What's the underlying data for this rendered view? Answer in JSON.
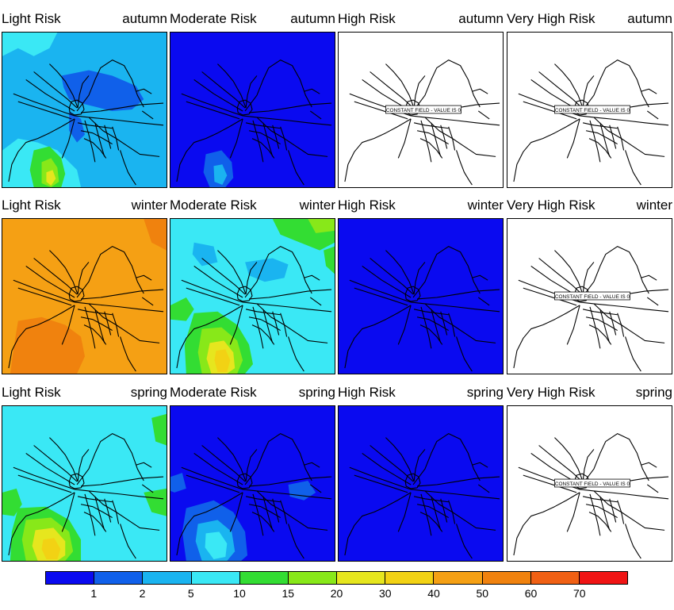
{
  "colorbar": {
    "colors": [
      "#0a0af0",
      "#1060ea",
      "#1ab4f0",
      "#3ae8f5",
      "#33dd33",
      "#88e819",
      "#e6e61e",
      "#f2d214",
      "#f5a014",
      "#f0820e",
      "#f06014",
      "#f01414"
    ],
    "labels": [
      "1",
      "2",
      "5",
      "10",
      "15",
      "20",
      "30",
      "40",
      "50",
      "60",
      "70"
    ]
  },
  "constant_label": "CONSTANT FIELD - VALUE IS 0",
  "rows": [
    {
      "season": "autumn",
      "panels": [
        {
          "risk": "Light Risk",
          "season": "autumn",
          "base_color": "#1ab4f0",
          "pattern": "light-autumn"
        },
        {
          "risk": "Moderate Risk",
          "season": "autumn",
          "base_color": "#0a0af0",
          "pattern": "moderate-autumn"
        },
        {
          "risk": "High Risk",
          "season": "autumn",
          "base_color": "#ffffff",
          "pattern": "constant"
        },
        {
          "risk": "Very High Risk",
          "season": "autumn",
          "base_color": "#ffffff",
          "pattern": "constant"
        }
      ]
    },
    {
      "season": "winter",
      "panels": [
        {
          "risk": "Light Risk",
          "season": "winter",
          "base_color": "#f5a014",
          "pattern": "light-winter"
        },
        {
          "risk": "Moderate Risk",
          "season": "winter",
          "base_color": "#3ae8f5",
          "pattern": "moderate-winter"
        },
        {
          "risk": "High Risk",
          "season": "winter",
          "base_color": "#0a0af0",
          "pattern": "flat"
        },
        {
          "risk": "Very High Risk",
          "season": "winter",
          "base_color": "#ffffff",
          "pattern": "constant"
        }
      ]
    },
    {
      "season": "spring",
      "panels": [
        {
          "risk": "Light Risk",
          "season": "spring",
          "base_color": "#3ae8f5",
          "pattern": "light-spring"
        },
        {
          "risk": "Moderate Risk",
          "season": "spring",
          "base_color": "#0a0af0",
          "pattern": "moderate-spring"
        },
        {
          "risk": "High Risk",
          "season": "spring",
          "base_color": "#0a0af0",
          "pattern": "flat"
        },
        {
          "risk": "Very High Risk",
          "season": "spring",
          "base_color": "#ffffff",
          "pattern": "constant"
        }
      ]
    }
  ]
}
